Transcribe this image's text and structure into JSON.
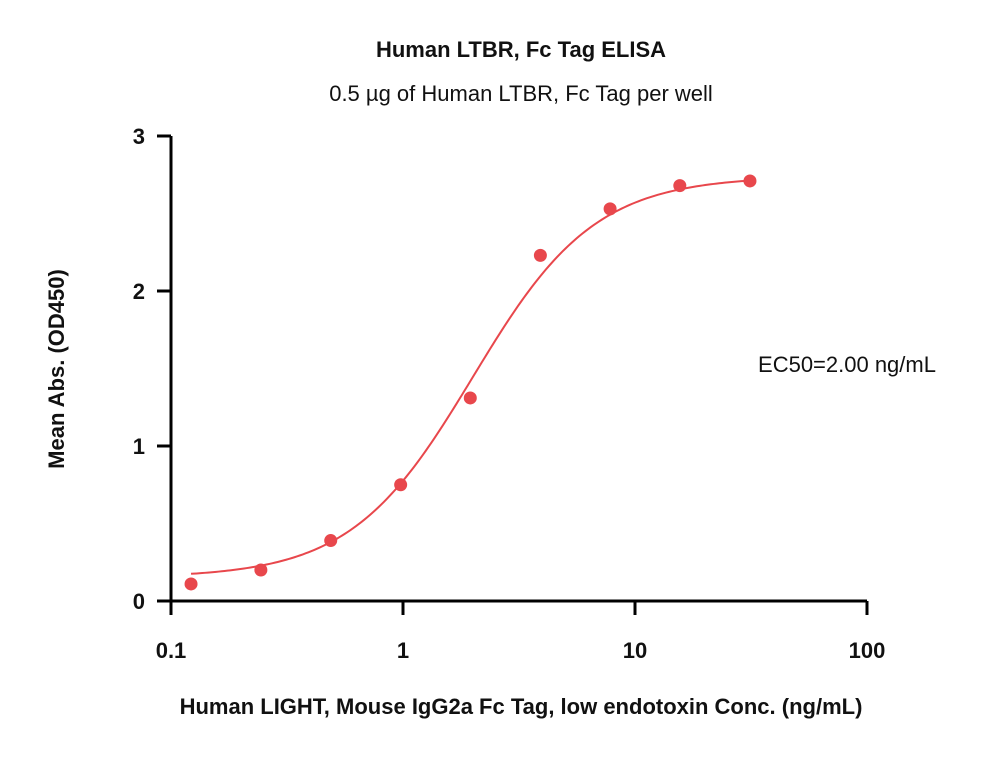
{
  "chart_data": {
    "type": "scatter",
    "title": "Human LTBR, Fc Tag ELISA",
    "subtitle": "0.5 µg of Human LTBR, Fc Tag per well",
    "xlabel": "Human LIGHT, Mouse IgG2a Fc Tag, low endotoxin Conc. (ng/mL)",
    "ylabel": "Mean Abs. (OD450)",
    "x_scale": "log",
    "xlim": [
      0.1,
      100
    ],
    "ylim": [
      0,
      3
    ],
    "x_ticks": [
      0.1,
      1,
      10,
      100
    ],
    "x_tick_labels": [
      "0.1",
      "1",
      "10",
      "100"
    ],
    "y_ticks": [
      0,
      1,
      2,
      3
    ],
    "y_tick_labels": [
      "0",
      "1",
      "2",
      "3"
    ],
    "annotation": "EC50=2.00 ng/mL",
    "ec50": 2.0,
    "color": "#e8474c",
    "grid": false,
    "legend": "none",
    "series": [
      {
        "x": [
          0.122,
          0.244,
          0.488,
          0.977,
          1.95,
          3.91,
          7.81,
          15.6,
          31.3
        ],
        "y": [
          0.11,
          0.2,
          0.39,
          0.75,
          1.31,
          2.23,
          2.53,
          2.68,
          2.71
        ]
      }
    ],
    "fit": {
      "model": "4PL",
      "bottom": 0.15,
      "top": 2.74,
      "ec50": 2.0,
      "hill": 1.65,
      "x_range": [
        0.122,
        31.3
      ]
    }
  }
}
